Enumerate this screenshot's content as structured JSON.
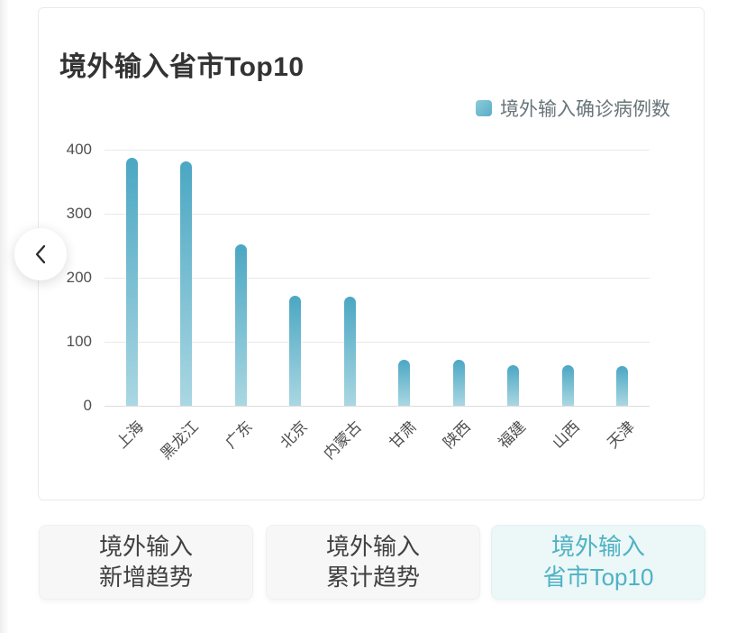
{
  "chart_card": {
    "title": "境外输入省市Top10",
    "legend_label": "境外输入确诊病例数"
  },
  "chart_data": {
    "type": "bar",
    "title": "境外输入省市Top10",
    "categories": [
      "上海",
      "黑龙江",
      "广东",
      "北京",
      "内蒙古",
      "甘肃",
      "陕西",
      "福建",
      "山西",
      "天津"
    ],
    "series": [
      {
        "name": "境外输入确诊病例数",
        "values": [
          387,
          382,
          252,
          172,
          170,
          72,
          72,
          64,
          64,
          62
        ]
      }
    ],
    "xlabel": "",
    "ylabel": "",
    "ylim": [
      0,
      400
    ],
    "yticks": [
      0,
      100,
      200,
      300,
      400
    ],
    "grid": true,
    "legend_position": "top-right",
    "x_label_rotation": -45,
    "bar_gradient_top": "#4ba7c3",
    "bar_gradient_bottom": "#aad7e2"
  },
  "tabs": [
    {
      "line1": "境外输入",
      "line2": "新增趋势",
      "active": false
    },
    {
      "line1": "境外输入",
      "line2": "累计趋势",
      "active": false
    },
    {
      "line1": "境外输入",
      "line2": "省市Top10",
      "active": true
    }
  ],
  "colors": {
    "accent": "#4fb2c3",
    "active_tab_bg": "#ecf7f8",
    "tab_bg": "#f7f7f7",
    "grid_line": "#e9e9e9"
  }
}
